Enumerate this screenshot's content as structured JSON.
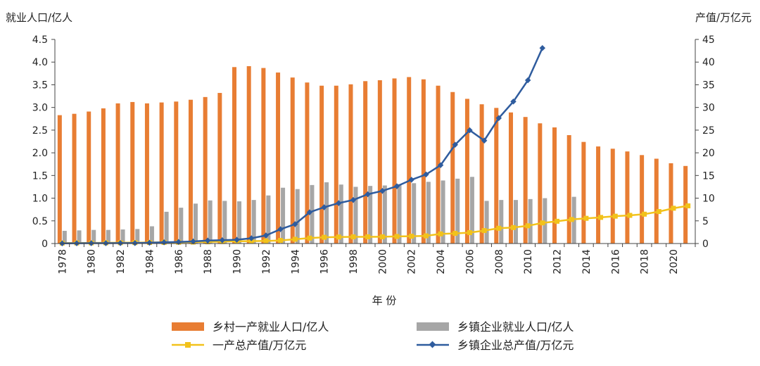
{
  "chart_data": {
    "type": "bar+line",
    "x": [
      1978,
      1979,
      1980,
      1981,
      1982,
      1983,
      1984,
      1985,
      1986,
      1987,
      1988,
      1989,
      1990,
      1991,
      1992,
      1993,
      1994,
      1995,
      1996,
      1997,
      1998,
      1999,
      2000,
      2001,
      2002,
      2003,
      2004,
      2005,
      2006,
      2007,
      2008,
      2009,
      2010,
      2011,
      2012,
      2013,
      2014,
      2015,
      2016,
      2017,
      2018,
      2019,
      2020,
      2021
    ],
    "xticks": [
      "1978",
      "1980",
      "1982",
      "1984",
      "1986",
      "1988",
      "1990",
      "1992",
      "1994",
      "1996",
      "1998",
      "2000",
      "2002",
      "2004",
      "2006",
      "2008",
      "2010",
      "2012",
      "2014",
      "2016",
      "2018",
      "2020"
    ],
    "xlabel": "年 份",
    "ylabel_left": "就业人口/亿人",
    "ylabel_right": "产值/万亿元",
    "ylim_left": [
      0,
      4.5
    ],
    "ylim_right": [
      0,
      45
    ],
    "yticks_left": [
      "0",
      "0.5",
      "1.0",
      "1.5",
      "2.0",
      "2.5",
      "3.0",
      "3.5",
      "4.0",
      "4.5"
    ],
    "yticks_right": [
      "0",
      "5",
      "10",
      "15",
      "20",
      "25",
      "30",
      "35",
      "40",
      "45"
    ],
    "grid": false,
    "legend_position": "bottom",
    "series": [
      {
        "name": "乡村一产就业人口/亿人",
        "kind": "bar",
        "axis": "left",
        "color": "#E87D33",
        "values": [
          2.83,
          2.86,
          2.91,
          2.98,
          3.09,
          3.12,
          3.09,
          3.11,
          3.13,
          3.17,
          3.23,
          3.32,
          3.89,
          3.91,
          3.87,
          3.77,
          3.66,
          3.55,
          3.48,
          3.48,
          3.51,
          3.58,
          3.6,
          3.64,
          3.67,
          3.62,
          3.48,
          3.34,
          3.19,
          3.07,
          2.99,
          2.89,
          2.79,
          2.65,
          2.56,
          2.39,
          2.24,
          2.14,
          2.09,
          2.03,
          1.95,
          1.87,
          1.77,
          1.71
        ]
      },
      {
        "name": "乡镇企业就业人口/亿人",
        "kind": "bar",
        "axis": "left",
        "color": "#A6A6A6",
        "values": [
          0.28,
          0.29,
          0.3,
          0.3,
          0.31,
          0.32,
          0.38,
          0.7,
          0.79,
          0.88,
          0.95,
          0.94,
          0.93,
          0.96,
          1.06,
          1.23,
          1.2,
          1.29,
          1.35,
          1.3,
          1.25,
          1.27,
          1.28,
          1.31,
          1.33,
          1.36,
          1.39,
          1.43,
          1.47,
          0.94,
          0.96,
          0.96,
          0.98,
          1.0,
          null,
          1.03,
          null,
          null,
          null,
          null,
          null,
          null,
          null,
          null
        ]
      },
      {
        "name": "一产总产值/万亿元",
        "kind": "line",
        "axis": "right",
        "color": "#F2C21B",
        "values": [
          0.1,
          0.13,
          0.14,
          0.16,
          0.18,
          0.2,
          0.23,
          0.26,
          0.28,
          0.32,
          0.38,
          0.43,
          0.5,
          0.53,
          0.58,
          0.69,
          0.95,
          1.2,
          1.38,
          1.44,
          1.48,
          1.48,
          1.49,
          1.56,
          1.62,
          1.69,
          2.12,
          2.24,
          2.4,
          2.86,
          3.37,
          3.52,
          3.91,
          4.55,
          4.91,
          5.3,
          5.56,
          5.76,
          6.03,
          6.21,
          6.47,
          7.05,
          7.78,
          8.31
        ]
      },
      {
        "name": "乡镇企业总产值/万亿元",
        "kind": "line",
        "axis": "right",
        "color": "#2F5C9E",
        "values": [
          0.05,
          0.06,
          0.07,
          0.08,
          0.09,
          0.1,
          0.17,
          0.27,
          0.35,
          0.47,
          0.65,
          0.74,
          0.84,
          1.16,
          1.79,
          3.15,
          4.26,
          6.89,
          7.99,
          8.9,
          9.6,
          10.86,
          11.61,
          12.63,
          14.06,
          15.23,
          17.27,
          21.78,
          24.99,
          22.7,
          27.65,
          31.3,
          36.0,
          43.1,
          null,
          null,
          null,
          null,
          null,
          null,
          null,
          null,
          null,
          null
        ]
      }
    ]
  }
}
